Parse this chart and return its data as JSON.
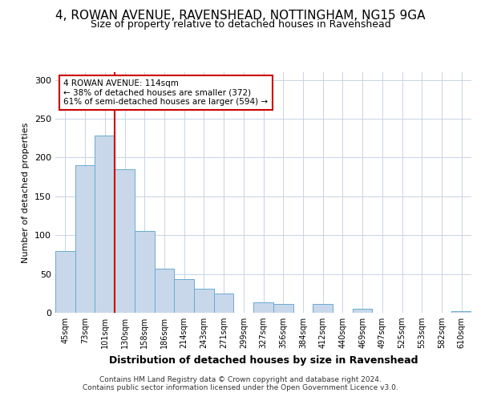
{
  "title_line1": "4, ROWAN AVENUE, RAVENSHEAD, NOTTINGHAM, NG15 9GA",
  "title_line2": "Size of property relative to detached houses in Ravenshead",
  "xlabel": "Distribution of detached houses by size in Ravenshead",
  "ylabel": "Number of detached properties",
  "footer_line1": "Contains HM Land Registry data © Crown copyright and database right 2024.",
  "footer_line2": "Contains public sector information licensed under the Open Government Licence v3.0.",
  "bar_color": "#c8d8ea",
  "bar_edge_color": "#6aaad4",
  "grid_color": "#c8d4e4",
  "background_color": "#ffffff",
  "vline_color": "#cc0000",
  "vline_x": 2.5,
  "annotation_text": "4 ROWAN AVENUE: 114sqm\n← 38% of detached houses are smaller (372)\n61% of semi-detached houses are larger (594) →",
  "annotation_box_color": "white",
  "annotation_box_edge": "#cc0000",
  "categories": [
    "45sqm",
    "73sqm",
    "101sqm",
    "130sqm",
    "158sqm",
    "186sqm",
    "214sqm",
    "243sqm",
    "271sqm",
    "299sqm",
    "327sqm",
    "356sqm",
    "384sqm",
    "412sqm",
    "440sqm",
    "469sqm",
    "497sqm",
    "525sqm",
    "553sqm",
    "582sqm",
    "610sqm"
  ],
  "values": [
    80,
    190,
    228,
    185,
    105,
    57,
    43,
    31,
    25,
    0,
    13,
    11,
    0,
    11,
    0,
    5,
    0,
    0,
    0,
    0,
    2
  ],
  "ylim": [
    0,
    310
  ],
  "yticks": [
    0,
    50,
    100,
    150,
    200,
    250,
    300
  ],
  "title_fontsize": 11,
  "subtitle_fontsize": 9,
  "footer_fontsize": 6.5
}
